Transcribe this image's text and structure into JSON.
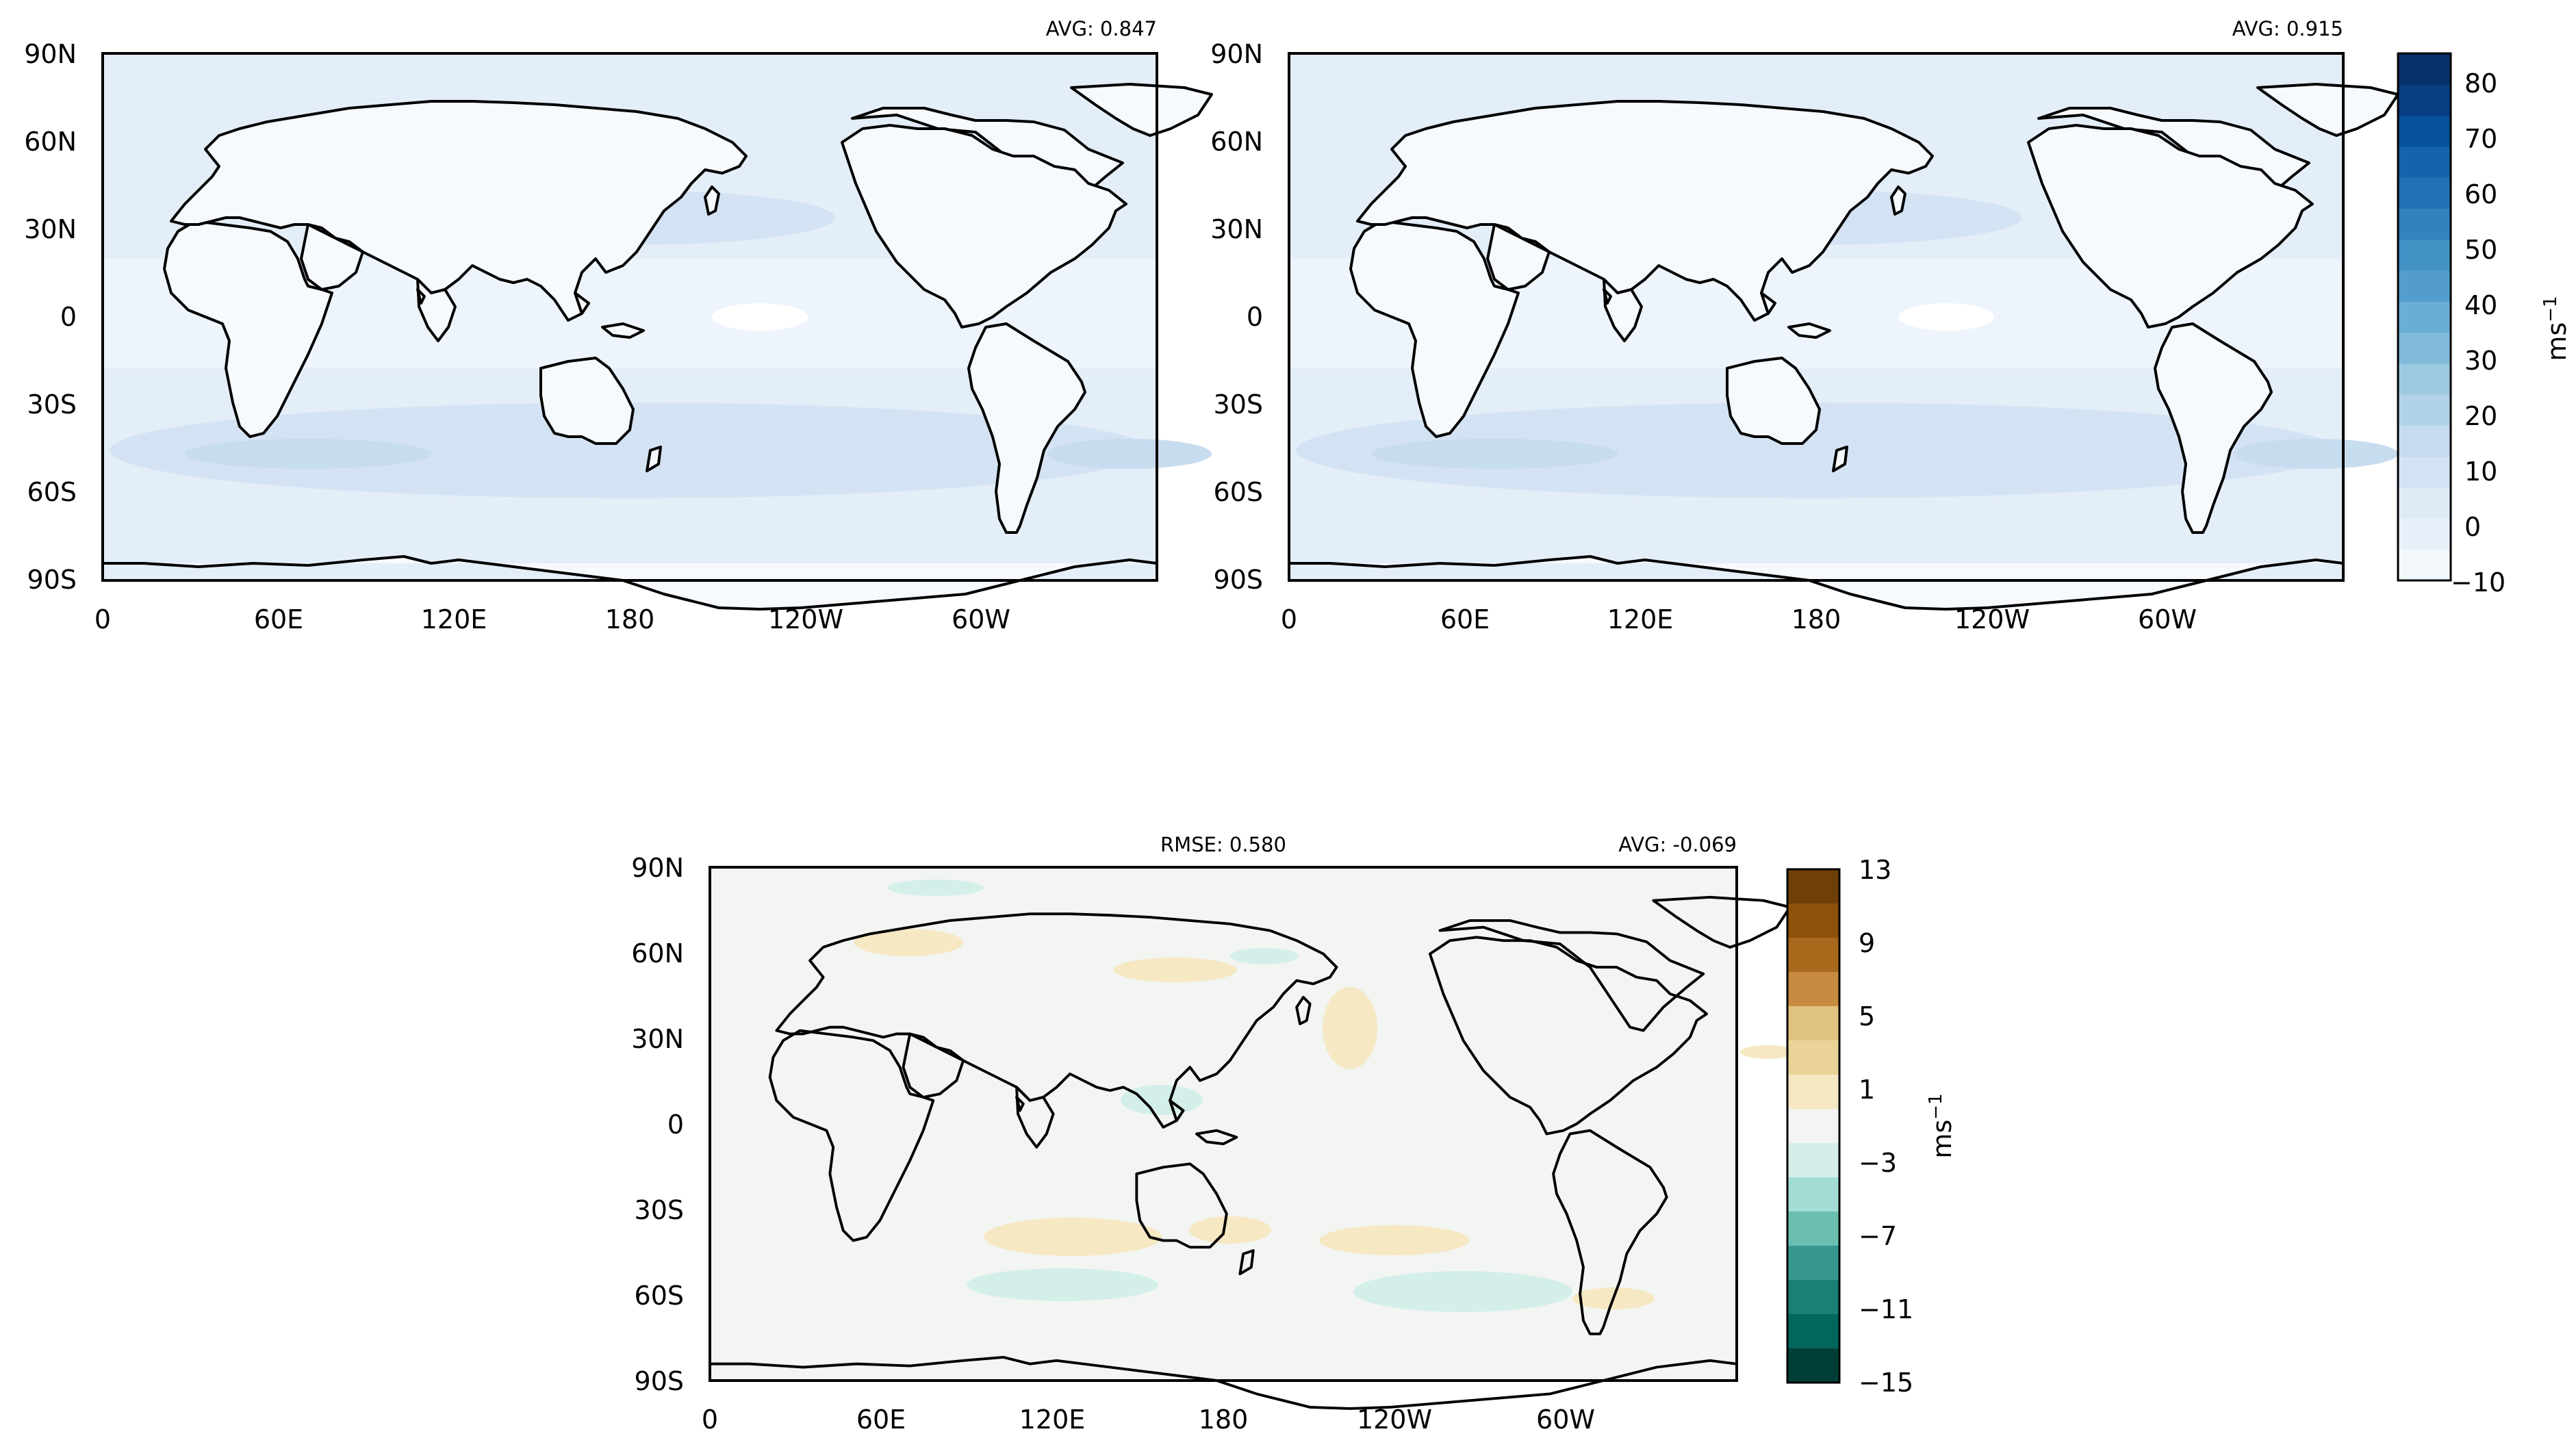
{
  "panels": [
    {
      "id": "top-left",
      "avg": "AVG: 0.847",
      "rmse": "",
      "field": "model"
    },
    {
      "id": "top-right",
      "avg": "AVG: 0.915",
      "rmse": "",
      "field": "obs"
    },
    {
      "id": "bottom",
      "avg": "AVG: -0.069",
      "rmse": "RMSE: 0.580",
      "field": "diff"
    }
  ],
  "axes": {
    "lat_ticks": [
      "90N",
      "60N",
      "30N",
      "0",
      "30S",
      "60S",
      "90S"
    ],
    "lon_ticks": [
      "0",
      "60E",
      "120E",
      "180",
      "120W",
      "60W"
    ]
  },
  "colorbars": {
    "field": {
      "ticks": [
        "80",
        "70",
        "60",
        "50",
        "40",
        "30",
        "20",
        "10",
        "0",
        "−10"
      ],
      "unit": "ms",
      "unit_sup": "−1",
      "colors": [
        "#f3f8fd",
        "#e8f1fa",
        "#deebf7",
        "#d2e4f3",
        "#c6dbef",
        "#b2d2e8",
        "#9ecae1",
        "#82badb",
        "#6aaed6",
        "#529dcc",
        "#4292c6",
        "#3282bd",
        "#2171b5",
        "#1563aa",
        "#08519c",
        "#083f80",
        "#08306b"
      ]
    },
    "diff": {
      "ticks": [
        "13",
        "9",
        "5",
        "1",
        "−3",
        "−7",
        "−11",
        "−15"
      ],
      "unit": "ms",
      "unit_sup": "−1",
      "colors": [
        "#6e3f08",
        "#8c510a",
        "#a8691d",
        "#c68b3f",
        "#dfc27d",
        "#ead397",
        "#f6e8c3",
        "#f4f4f2",
        "#d4efea",
        "#a4ddd3",
        "#6bbfb1",
        "#35978f",
        "#1b7f77",
        "#01665e",
        "#003f37"
      ]
    }
  },
  "map_colors": {
    "model_background": "#e4eef9",
    "obs_background": "#e4eef9",
    "diff_background": "#f3f5f3",
    "coastline": "#000000"
  }
}
